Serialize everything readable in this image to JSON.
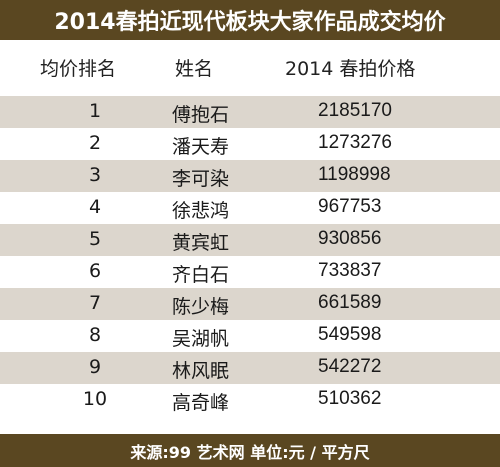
{
  "title": "2014春拍近现代板块大家作品成交均价",
  "headers": {
    "rank": "均价排名",
    "name": "姓名",
    "price": "2014 春拍价格"
  },
  "rows": [
    {
      "rank": "1",
      "name": "傅抱石",
      "price": "2185170"
    },
    {
      "rank": "2",
      "name": "潘天寿",
      "price": "1273276"
    },
    {
      "rank": "3",
      "name": "李可染",
      "price": "1198998"
    },
    {
      "rank": "4",
      "name": "徐悲鸿",
      "price": "967753"
    },
    {
      "rank": "5",
      "name": "黄宾虹",
      "price": "930856"
    },
    {
      "rank": "6",
      "name": "齐白石",
      "price": "733837"
    },
    {
      "rank": "7",
      "name": "陈少梅",
      "price": "661589"
    },
    {
      "rank": "8",
      "name": "吴湖帆",
      "price": "549598"
    },
    {
      "rank": "9",
      "name": "林风眠",
      "price": "542272"
    },
    {
      "rank": "10",
      "name": "高奇峰",
      "price": "510362"
    }
  ],
  "footer": "来源:99 艺术网 单位:元 / 平方尺",
  "colors": {
    "bar": "#5a4721",
    "shade": "#dcd6cd"
  }
}
